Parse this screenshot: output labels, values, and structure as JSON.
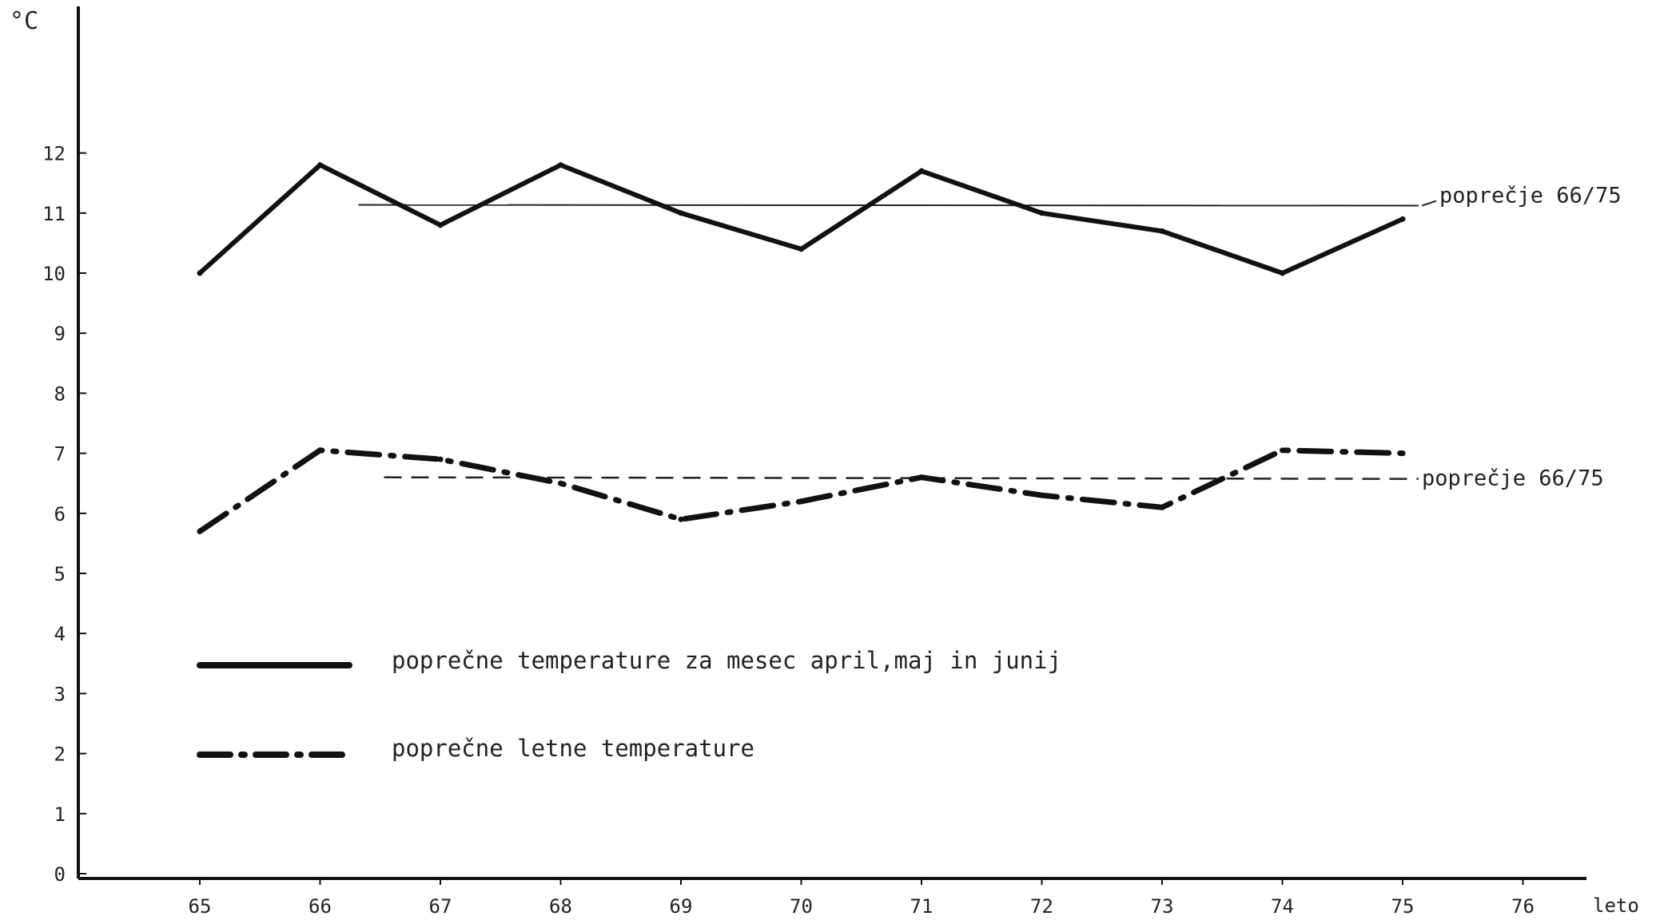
{
  "chart_data": {
    "type": "line",
    "y_unit_label": "°C",
    "xlabel": "leto",
    "ylabel": "",
    "x": [
      "65",
      "66",
      "67",
      "68",
      "69",
      "70",
      "71",
      "72",
      "73",
      "74",
      "75"
    ],
    "x_ticks": [
      "65",
      "66",
      "67",
      "68",
      "69",
      "70",
      "71",
      "72",
      "73",
      "74",
      "75",
      "76"
    ],
    "y_ticks": [
      "0",
      "1",
      "2",
      "3",
      "4",
      "5",
      "6",
      "7",
      "8",
      "9",
      "10",
      "11",
      "12"
    ],
    "ylim": [
      0,
      13.9
    ],
    "grid": false,
    "legend_position": "bottom-left inside plot",
    "series": [
      {
        "name": "poprečne temperature za mesec april,maj in junij",
        "style": "solid",
        "color": "#111111",
        "values": [
          10.0,
          11.8,
          10.8,
          11.8,
          11.0,
          10.4,
          11.7,
          11.0,
          10.7,
          10.0,
          10.9
        ]
      },
      {
        "name": "poprečne letne temperature",
        "style": "dash-dot",
        "color": "#111111",
        "values": [
          5.7,
          7.05,
          6.9,
          6.5,
          5.9,
          6.2,
          6.6,
          6.3,
          6.1,
          7.05,
          7.0
        ]
      }
    ],
    "reference_lines": [
      {
        "label": "poprečje 66/75",
        "style": "solid-thin",
        "y": 11.15,
        "x_from": "66",
        "x_to": "75"
      },
      {
        "label": "poprečje 66/75",
        "style": "dashed",
        "y": 6.6,
        "x_from": "66",
        "x_to": "75"
      }
    ]
  }
}
